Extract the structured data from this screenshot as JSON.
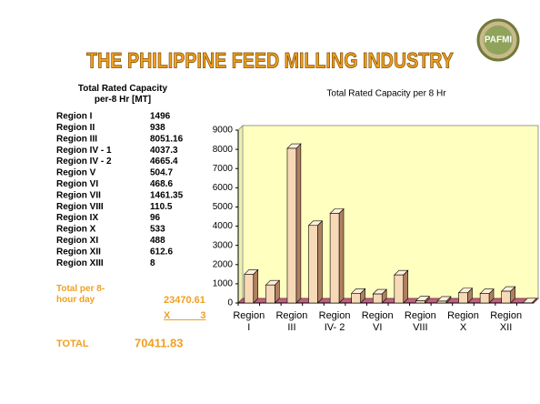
{
  "slide": {
    "title": "THE PHILIPPINE FEED MILLING INDUSTRY",
    "logo": "PAFMI",
    "table": {
      "header": "Total Rated Capacity per-8 Hr [MT]",
      "rows": [
        [
          "Region I",
          1496
        ],
        [
          "Region II",
          938
        ],
        [
          "Region III",
          8051.16
        ],
        [
          "Region IV - 1",
          4037.3
        ],
        [
          "Region IV - 2",
          4665.4
        ],
        [
          "Region V",
          504.7
        ],
        [
          "Region VI",
          468.6
        ],
        [
          "Region VII",
          1461.35
        ],
        [
          "Region VIII",
          110.5
        ],
        [
          "Region IX",
          96
        ],
        [
          "Region X",
          533
        ],
        [
          "Region XI",
          488
        ],
        [
          "Region XII",
          612.6
        ],
        [
          "Region XIII",
          8
        ]
      ],
      "subtotal_label": "Total per 8-hour day",
      "subtotal": 23470.61,
      "multiplier": "X 3",
      "total_label": "TOTAL",
      "total": 70411.83
    }
  },
  "chart_data": {
    "type": "bar",
    "title": "Total Rated Capacity per 8 Hr",
    "categories": [
      "Region I",
      null,
      "Region III",
      null,
      "Region IV- 2",
      null,
      "Region VI",
      null,
      "Region VIII",
      null,
      "Region X",
      null,
      "Region XII",
      null
    ],
    "values": [
      1496,
      938,
      8051.16,
      4037.3,
      4665.4,
      504.7,
      468.6,
      1461.35,
      110.5,
      96,
      533,
      488,
      612.6,
      8
    ],
    "color": "#f7d9b8",
    "ylim": [
      0,
      9000
    ],
    "yticks": [
      0,
      1000,
      2000,
      3000,
      4000,
      5000,
      6000,
      7000,
      8000,
      9000
    ],
    "grid": false
  }
}
